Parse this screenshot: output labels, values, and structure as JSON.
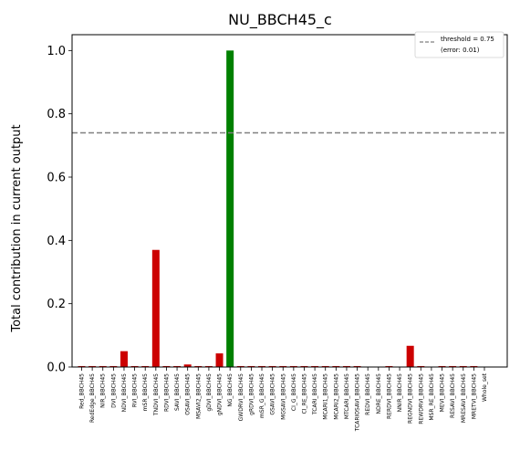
{
  "chart_data": {
    "type": "bar",
    "title": "NU_BBCH45_c",
    "xlabel": "",
    "ylabel": "Total contribution in current output",
    "ylim": [
      0,
      1.05
    ],
    "yticks": [
      0.0,
      0.2,
      0.4,
      0.6,
      0.8,
      1.0
    ],
    "ytick_labels": [
      "0.0",
      "0.2",
      "0.4",
      "0.6",
      "0.8",
      "1.0"
    ],
    "grid": false,
    "legend_position": "top-right",
    "threshold": {
      "value": 0.74,
      "label": "threshold = 0.75",
      "sublabel": "(error: 0.01)",
      "color": "#808080"
    },
    "colors": {
      "default": "#cc0000",
      "highlight": "#008000"
    },
    "highlight_index": 14,
    "categories": [
      "Red_BBCH45",
      "RedEdge_BBCH45",
      "NIR_BBCH45",
      "DVI_BBCH45",
      "NDVI_BBCH45",
      "RVI_BBCH45",
      "mSR_BBCH45",
      "TNDVI_BBCH45",
      "RDVI_BBCH45",
      "SAVI_BBCH45",
      "OSAVI_BBCH45",
      "MSAVI2_BBCH45",
      "gDVI_BBCH45",
      "gNDVI_BBCH45",
      "NG_BBCH45",
      "GWDRVI_BBCH45",
      "gRDVI_BBCH45",
      "mSR_G_BBCH45",
      "GSAVI_BBCH45",
      "MGSAVI_BBCH45",
      "CI_G_BBCH45",
      "CI_RE_BBCH45",
      "TCARI_BBCH45",
      "MCARI1_BBCH45",
      "MCARI2_BBCH45",
      "MTCARI_BBCH45",
      "TCARIOSAVI_BBCH45",
      "REDVI_BBCH45",
      "NDRE_BBCH45",
      "RERDVI_BBCH45",
      "NNIR_BBCH45",
      "REGNDVI_BBCH45",
      "REWDRVI_BBCH45",
      "MSR_RE_BBCH45",
      "MEVI_BBCH45",
      "RESAVI_BBCH45",
      "MRESAVI_BBCH45",
      "MRETVI_BBCH45",
      "Whole_set"
    ],
    "values": [
      0.003,
      0.003,
      0.003,
      0.003,
      0.05,
      0.003,
      0.003,
      0.37,
      0.003,
      0.003,
      0.008,
      0.003,
      0.003,
      0.043,
      1.0,
      0.003,
      0.003,
      0.003,
      0.003,
      0.003,
      0.003,
      0.003,
      0.003,
      0.003,
      0.003,
      0.003,
      0.003,
      0.0,
      0.0,
      0.003,
      0.0,
      0.067,
      0.003,
      0.0,
      0.003,
      0.003,
      0.003,
      0.003,
      0.0
    ]
  }
}
